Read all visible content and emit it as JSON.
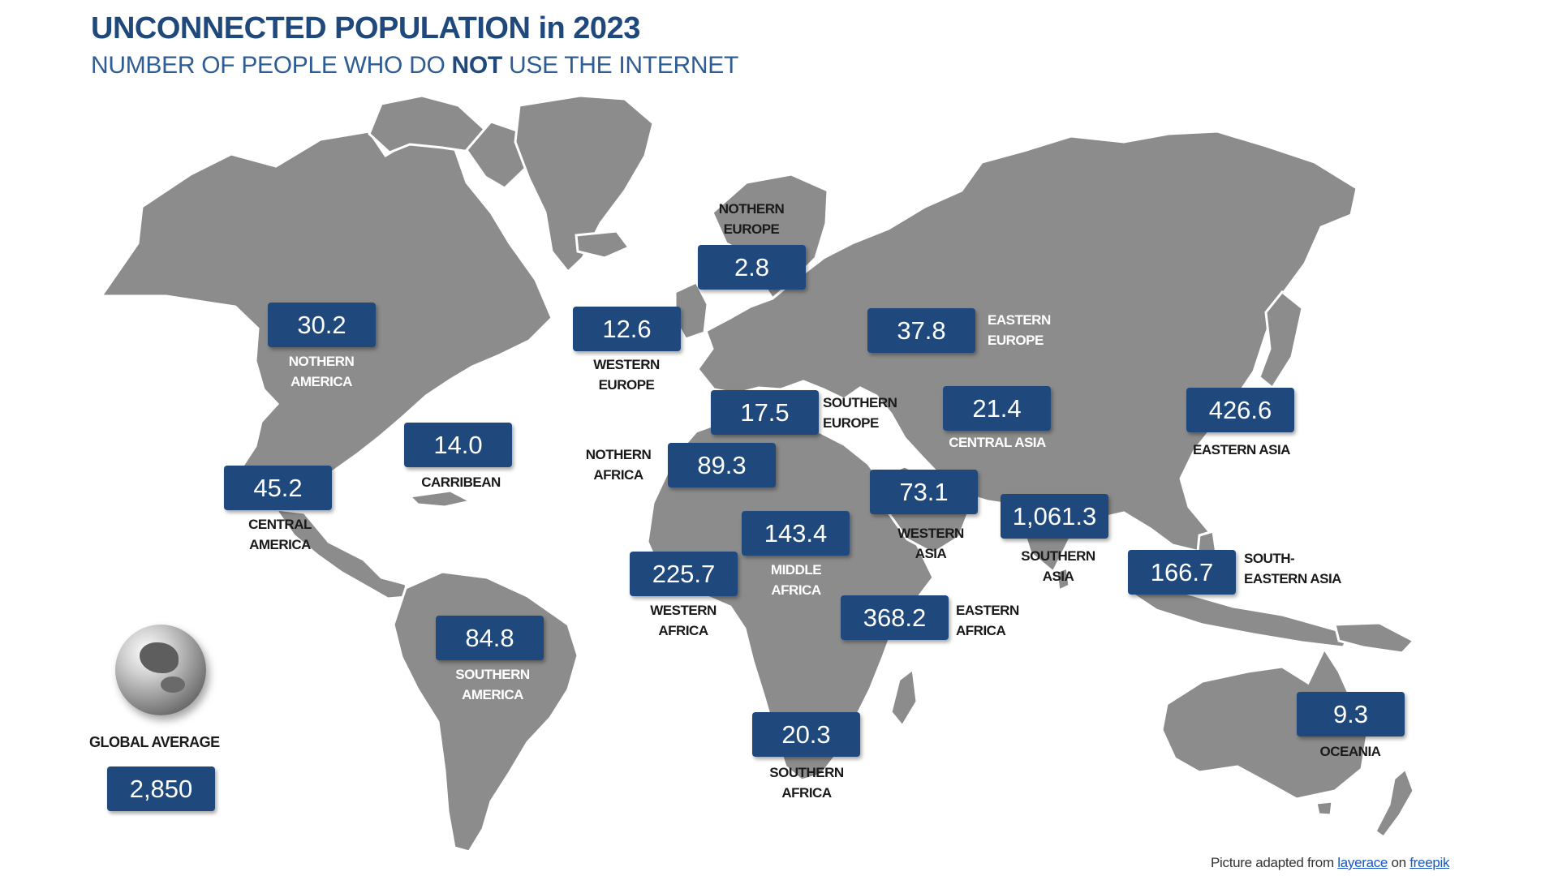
{
  "title": "UNCONNECTED POPULATION in 2023",
  "subtitle": {
    "before": "NUMBER OF PEOPLE WHO DO ",
    "emphasis": "NOT",
    "after": " USE THE INTERNET"
  },
  "regions": {
    "northern_america": {
      "value": "30.2",
      "label": "NOTHERN\nAMERICA"
    },
    "caribbean": {
      "value": "14.0",
      "label": "CARRIBEAN"
    },
    "central_america": {
      "value": "45.2",
      "label": "CENTRAL\nAMERICA"
    },
    "southern_america": {
      "value": "84.8",
      "label": "SOUTHERN\nAMERICA"
    },
    "northern_europe": {
      "value": "2.8",
      "label": "NOTHERN\nEUROPE"
    },
    "western_europe": {
      "value": "12.6",
      "label": "WESTERN\nEUROPE"
    },
    "southern_europe": {
      "value": "17.5",
      "label": "SOUTHERN\nEUROPE"
    },
    "eastern_europe": {
      "value": "37.8",
      "label": "EASTERN\nEUROPE"
    },
    "central_asia": {
      "value": "21.4",
      "label": "CENTRAL ASIA"
    },
    "eastern_asia": {
      "value": "426.6",
      "label": "EASTERN ASIA"
    },
    "northern_africa": {
      "value": "89.3",
      "label": "NOTHERN\nAFRICA"
    },
    "western_asia": {
      "value": "73.1",
      "label": "WESTERN\nASIA"
    },
    "southern_asia": {
      "value": "1,061.3",
      "label": "SOUTHERN\nASIA"
    },
    "middle_africa": {
      "value": "143.4",
      "label": "MIDDLE\nAFRICA"
    },
    "western_africa": {
      "value": "225.7",
      "label": "WESTERN\nAFRICA"
    },
    "south_eastern_asia": {
      "value": "166.7",
      "label": "SOUTH-\nEASTERN ASIA"
    },
    "eastern_africa": {
      "value": "368.2",
      "label": "EASTERN\nAFRICA"
    },
    "southern_africa": {
      "value": "20.3",
      "label": "SOUTHERN\nAFRICA"
    },
    "oceania": {
      "value": "9.3",
      "label": "OCEANIA"
    }
  },
  "global": {
    "label": "GLOBAL AVERAGE",
    "value": "2,850"
  },
  "credit": {
    "prefix": "Picture adapted from ",
    "author": "layerace",
    "middle": " on ",
    "site": "freepik"
  },
  "colors": {
    "box": "#1F497D",
    "land": "#8c8c8c",
    "title": "#1F497D"
  }
}
